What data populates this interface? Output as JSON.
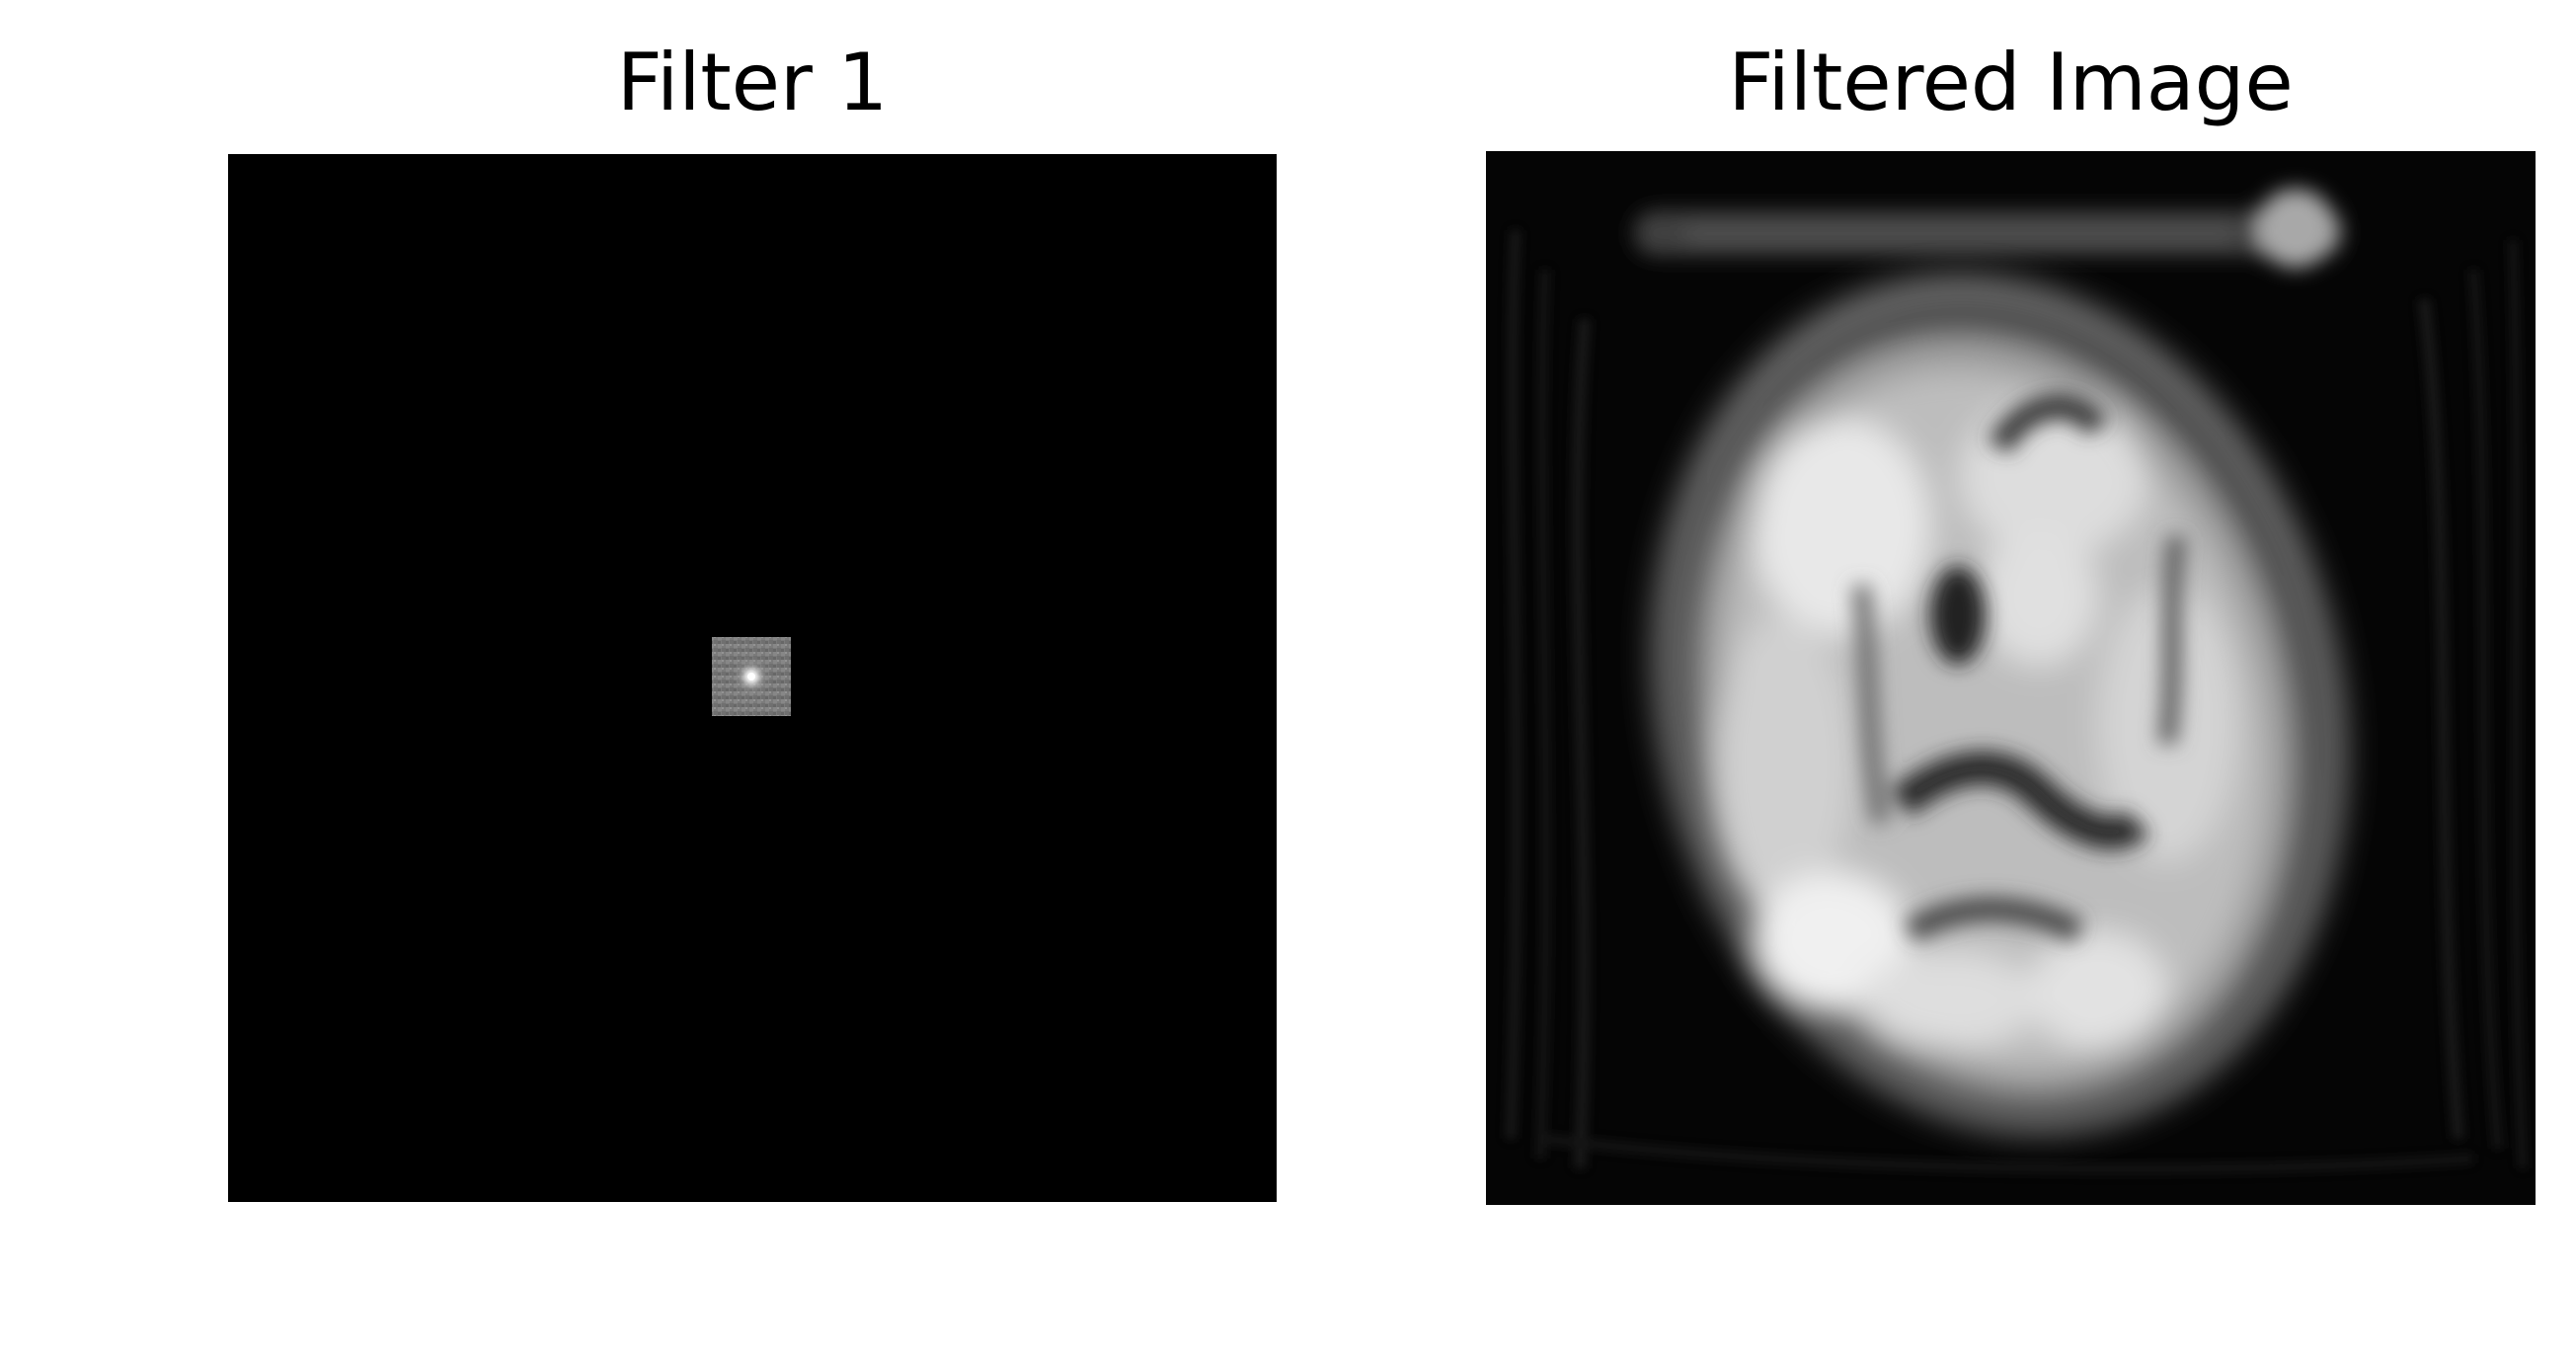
{
  "figure": {
    "panels": [
      {
        "title": "Filter 1",
        "content": "frequency-domain filter: black field with a small bright noisy square at the center",
        "colormap": "gray"
      },
      {
        "title": "Filtered Image",
        "content": "blurred low-pass filtered axial brain scan with ringing artifacts",
        "colormap": "gray"
      }
    ]
  }
}
